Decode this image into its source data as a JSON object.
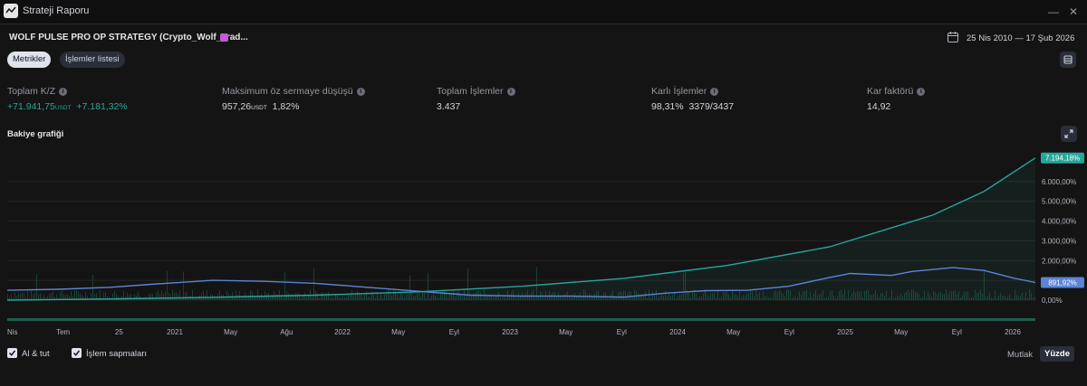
{
  "window": {
    "title": "Strateji Raporu"
  },
  "header": {
    "strategy_title": "WOLF PULSE PRO OP STRATEGY (Crypto_Wolf_Trad...",
    "date_range": "25 Nis 2010 — 17 Şub 2026"
  },
  "tabs": [
    {
      "label": "Metrikler",
      "active": true
    },
    {
      "label": "İşlemler listesi",
      "active": false
    }
  ],
  "metrics": {
    "total_pnl": {
      "label": "Toplam K/Z",
      "value": "+71.941,75",
      "unit": "USDT",
      "percent": "+7.181,32%"
    },
    "max_drawdown": {
      "label": "Maksimum öz sermaye düşüşü",
      "value": "957,26",
      "unit": "USDT",
      "percent": "1,82%"
    },
    "total_trades": {
      "label": "Toplam İşlemler",
      "value": "3.437"
    },
    "profitable_trades": {
      "label": "Karlı İşlemler",
      "value": "98,31%",
      "ratio": "3379/3437"
    },
    "profit_factor": {
      "label": "Kar faktörü",
      "value": "14,92"
    }
  },
  "chart_section": {
    "title": "Bakiye grafiği"
  },
  "chart_data": {
    "type": "line",
    "x_labels": [
      "Nis",
      "Tem",
      "25",
      "2021",
      "May",
      "Ağu",
      "2022",
      "May",
      "Eyl",
      "2023",
      "May",
      "Eyl",
      "2024",
      "May",
      "Eyl",
      "2025",
      "May",
      "Eyl",
      "2026"
    ],
    "y_ticks": [
      "0,00%",
      "1.000,00%",
      "2.000,00%",
      "3.000,00%",
      "4.000,00%",
      "5.000,00%",
      "6.000,00%"
    ],
    "ylim": [
      0,
      7500
    ],
    "series": [
      {
        "color": "#26a69a",
        "last_label": "7.194,18%",
        "points": [
          [
            0,
            0
          ],
          [
            0.1,
            60
          ],
          [
            0.2,
            140
          ],
          [
            0.3,
            250
          ],
          [
            0.4,
            420
          ],
          [
            0.5,
            700
          ],
          [
            0.6,
            1100
          ],
          [
            0.7,
            1750
          ],
          [
            0.8,
            2700
          ],
          [
            0.9,
            4300
          ],
          [
            0.95,
            5500
          ],
          [
            1.0,
            7194
          ]
        ]
      },
      {
        "color": "#5b84d6",
        "last_label": "891,92%",
        "points": [
          [
            0,
            500
          ],
          [
            0.05,
            550
          ],
          [
            0.1,
            650
          ],
          [
            0.14,
            800
          ],
          [
            0.17,
            900
          ],
          [
            0.2,
            1000
          ],
          [
            0.25,
            950
          ],
          [
            0.3,
            850
          ],
          [
            0.35,
            650
          ],
          [
            0.4,
            450
          ],
          [
            0.45,
            250
          ],
          [
            0.5,
            200
          ],
          [
            0.55,
            200
          ],
          [
            0.6,
            150
          ],
          [
            0.64,
            350
          ],
          [
            0.68,
            480
          ],
          [
            0.72,
            500
          ],
          [
            0.76,
            700
          ],
          [
            0.8,
            1150
          ],
          [
            0.82,
            1350
          ],
          [
            0.86,
            1250
          ],
          [
            0.88,
            1450
          ],
          [
            0.92,
            1650
          ],
          [
            0.95,
            1500
          ],
          [
            0.98,
            1100
          ],
          [
            1.0,
            892
          ]
        ]
      }
    ],
    "grid": true
  },
  "footer": {
    "checkboxes": [
      {
        "label": "Al & tut",
        "checked": true
      },
      {
        "label": "İşlem sapmaları",
        "checked": true
      }
    ],
    "modes": [
      {
        "label": "Mutlak",
        "active": false
      },
      {
        "label": "Yüzde",
        "active": true
      }
    ]
  }
}
